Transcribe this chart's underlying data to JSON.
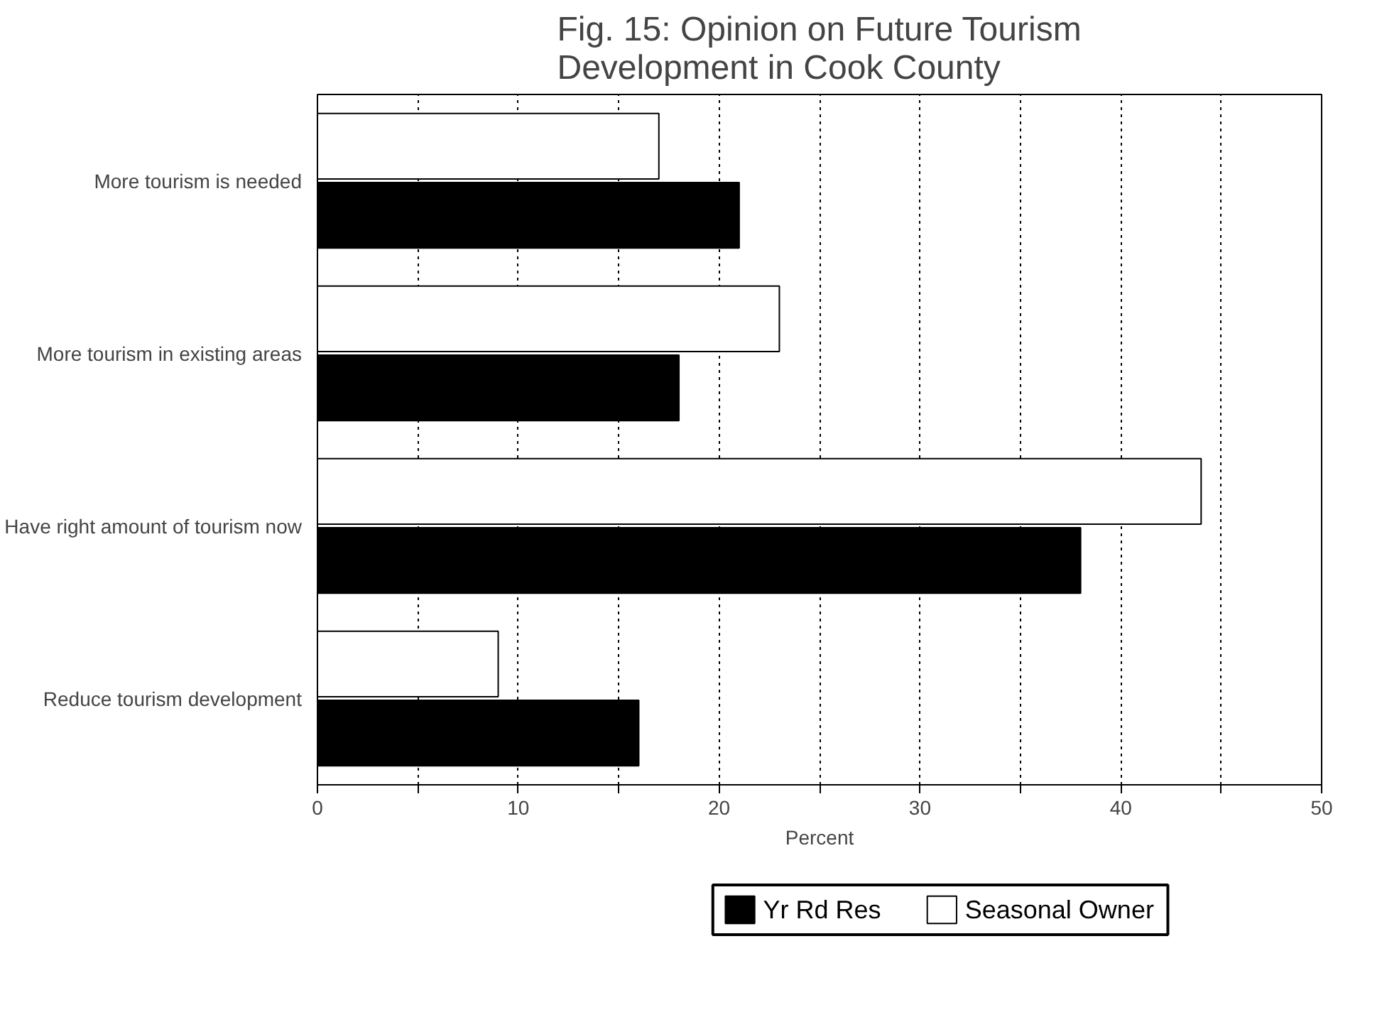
{
  "chart_data": {
    "type": "bar",
    "orientation": "horizontal",
    "title": "Fig. 15: Opinion on Future Tourism\nDevelopment in Cook County",
    "xlabel": "Percent",
    "categories": [
      "More tourism is needed",
      "More tourism in existing areas",
      "Have right amount of tourism now",
      "Reduce tourism development"
    ],
    "series": [
      {
        "name": "Yr Rd Res",
        "color": "#000000",
        "values": [
          21,
          18,
          38,
          16
        ]
      },
      {
        "name": "Seasonal Owner",
        "color": "#ffffff",
        "values": [
          17,
          23,
          44,
          9
        ]
      }
    ],
    "xlim": [
      0,
      50
    ],
    "xticks": [
      0,
      {
        "value": 5,
        "label": null
      },
      10,
      {
        "value": 15,
        "label": null
      },
      20,
      {
        "value": 25,
        "label": null
      },
      30,
      {
        "value": 35,
        "label": null
      },
      40,
      {
        "value": 45,
        "label": null
      },
      50
    ],
    "grid": "x",
    "legend": "bottom"
  }
}
